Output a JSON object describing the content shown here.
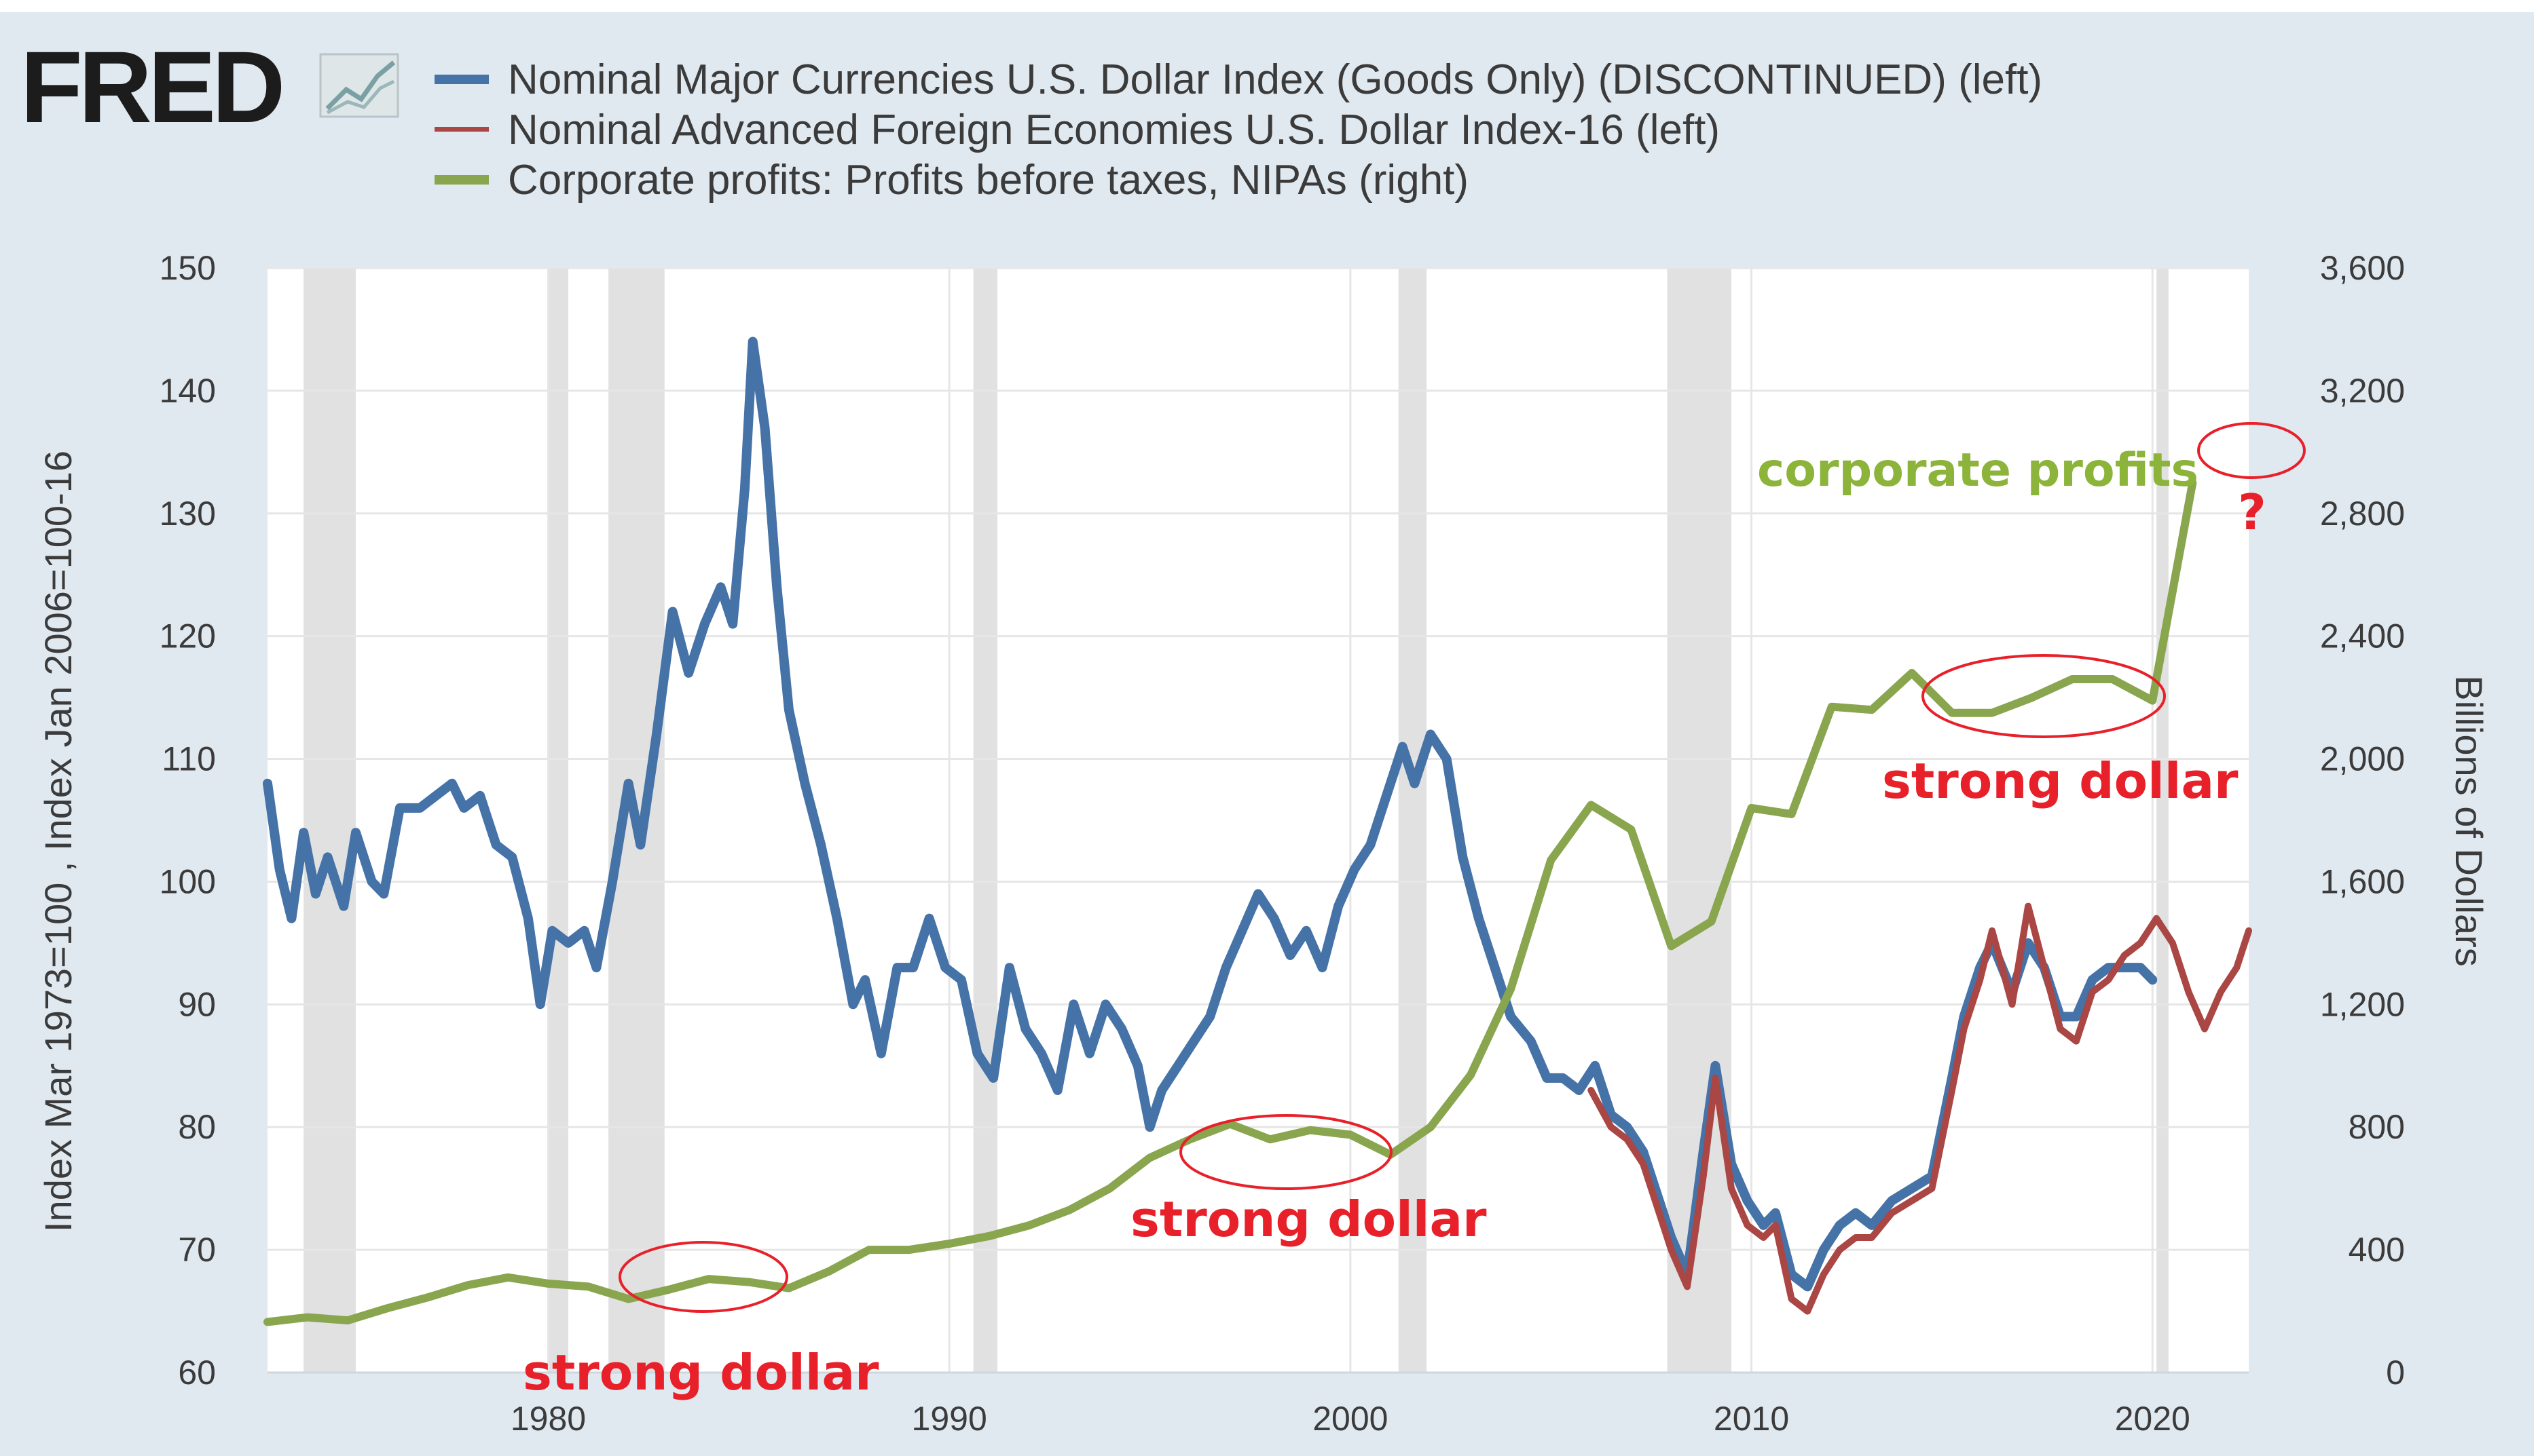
{
  "brand": {
    "logo_text": "FRED",
    "logo_icon": "line-chart-icon"
  },
  "colors": {
    "panel_bg": "#e1e9f0",
    "plot_bg": "#ffffff",
    "recession": "#e1e1e1",
    "series1": "#4572a7",
    "series2": "#aa4643",
    "series3": "#89a54e",
    "annotation": "#e8202a"
  },
  "chart_data": {
    "type": "line",
    "title": "",
    "legend_position": "top-left",
    "grid": true,
    "legend": [
      {
        "label": "Nominal Major Currencies U.S. Dollar Index (Goods Only) (DISCONTINUED) (left)",
        "color": "#4572a7"
      },
      {
        "label": "Nominal Advanced Foreign Economies U.S. Dollar Index-16 (left)",
        "color": "#aa4643"
      },
      {
        "label": "Corporate profits: Profits before taxes, NIPAs (right)",
        "color": "#89a54e"
      }
    ],
    "x_axis": {
      "range": [
        1973,
        2022.4
      ],
      "ticks": [
        "1980",
        "1990",
        "2000",
        "2010",
        "2020"
      ]
    },
    "y_left": {
      "label": "Index Mar 1973=100 , Index Jan 2006=100-16",
      "range": [
        60,
        150
      ],
      "ticks": [
        "60",
        "70",
        "80",
        "90",
        "100",
        "110",
        "120",
        "130",
        "140",
        "150"
      ]
    },
    "y_right": {
      "label": "Billions of Dollars",
      "range": [
        0,
        3600
      ],
      "ticks": [
        "0",
        "400",
        "800",
        "1,200",
        "1,600",
        "2,000",
        "2,400",
        "2,800",
        "3,200",
        "3,600"
      ]
    },
    "recessions": [
      [
        1973.9,
        1975.2
      ],
      [
        1980.0,
        1980.5
      ],
      [
        1981.5,
        1982.9
      ],
      [
        1990.6,
        1991.2
      ],
      [
        2001.2,
        2001.9
      ],
      [
        2007.9,
        2009.5
      ],
      [
        2020.1,
        2020.4
      ]
    ],
    "series": [
      {
        "name": "Nominal Major Currencies U.S. Dollar Index (Goods Only) (DISCONTINUED) (left)",
        "axis": "left",
        "points": [
          [
            1973.0,
            108
          ],
          [
            1973.3,
            101
          ],
          [
            1973.6,
            97
          ],
          [
            1973.9,
            104
          ],
          [
            1974.2,
            99
          ],
          [
            1974.5,
            102
          ],
          [
            1974.9,
            98
          ],
          [
            1975.2,
            104
          ],
          [
            1975.6,
            100
          ],
          [
            1975.9,
            99
          ],
          [
            1976.3,
            106
          ],
          [
            1976.8,
            106
          ],
          [
            1977.2,
            107
          ],
          [
            1977.6,
            108
          ],
          [
            1977.9,
            106
          ],
          [
            1978.3,
            107
          ],
          [
            1978.7,
            103
          ],
          [
            1979.1,
            102
          ],
          [
            1979.5,
            97
          ],
          [
            1979.8,
            90
          ],
          [
            1980.1,
            96
          ],
          [
            1980.5,
            95
          ],
          [
            1980.9,
            96
          ],
          [
            1981.2,
            93
          ],
          [
            1981.6,
            100
          ],
          [
            1982.0,
            108
          ],
          [
            1982.3,
            103
          ],
          [
            1982.7,
            112
          ],
          [
            1983.1,
            122
          ],
          [
            1983.5,
            117
          ],
          [
            1983.9,
            121
          ],
          [
            1984.3,
            124
          ],
          [
            1984.6,
            121
          ],
          [
            1984.9,
            132
          ],
          [
            1985.1,
            144
          ],
          [
            1985.4,
            137
          ],
          [
            1985.7,
            124
          ],
          [
            1986.0,
            114
          ],
          [
            1986.4,
            108
          ],
          [
            1986.8,
            103
          ],
          [
            1987.2,
            97
          ],
          [
            1987.6,
            90
          ],
          [
            1987.9,
            92
          ],
          [
            1988.3,
            86
          ],
          [
            1988.7,
            93
          ],
          [
            1989.1,
            93
          ],
          [
            1989.5,
            97
          ],
          [
            1989.9,
            93
          ],
          [
            1990.3,
            92
          ],
          [
            1990.7,
            86
          ],
          [
            1991.1,
            84
          ],
          [
            1991.5,
            93
          ],
          [
            1991.9,
            88
          ],
          [
            1992.3,
            86
          ],
          [
            1992.7,
            83
          ],
          [
            1993.1,
            90
          ],
          [
            1993.5,
            86
          ],
          [
            1993.9,
            90
          ],
          [
            1994.3,
            88
          ],
          [
            1994.7,
            85
          ],
          [
            1995.0,
            80
          ],
          [
            1995.3,
            83
          ],
          [
            1995.7,
            85
          ],
          [
            1996.1,
            87
          ],
          [
            1996.5,
            89
          ],
          [
            1996.9,
            93
          ],
          [
            1997.3,
            96
          ],
          [
            1997.7,
            99
          ],
          [
            1998.1,
            97
          ],
          [
            1998.5,
            94
          ],
          [
            1998.9,
            96
          ],
          [
            1999.3,
            93
          ],
          [
            1999.7,
            98
          ],
          [
            2000.1,
            101
          ],
          [
            2000.5,
            103
          ],
          [
            2000.9,
            107
          ],
          [
            2001.3,
            111
          ],
          [
            2001.6,
            108
          ],
          [
            2002.0,
            112
          ],
          [
            2002.4,
            110
          ],
          [
            2002.8,
            102
          ],
          [
            2003.2,
            97
          ],
          [
            2003.6,
            93
          ],
          [
            2004.0,
            89
          ],
          [
            2004.5,
            87
          ],
          [
            2004.9,
            84
          ],
          [
            2005.3,
            84
          ],
          [
            2005.7,
            83
          ],
          [
            2006.1,
            85
          ],
          [
            2006.5,
            81
          ],
          [
            2006.9,
            80
          ],
          [
            2007.3,
            78
          ],
          [
            2007.7,
            74
          ],
          [
            2008.0,
            71
          ],
          [
            2008.4,
            68
          ],
          [
            2008.8,
            78
          ],
          [
            2009.1,
            85
          ],
          [
            2009.5,
            77
          ],
          [
            2009.9,
            74
          ],
          [
            2010.3,
            72
          ],
          [
            2010.6,
            73
          ],
          [
            2011.0,
            68
          ],
          [
            2011.4,
            67
          ],
          [
            2011.8,
            70
          ],
          [
            2012.2,
            72
          ],
          [
            2012.6,
            73
          ],
          [
            2013.0,
            72
          ],
          [
            2013.5,
            74
          ],
          [
            2014.0,
            75
          ],
          [
            2014.5,
            76
          ],
          [
            2015.0,
            84
          ],
          [
            2015.3,
            89
          ],
          [
            2015.7,
            93
          ],
          [
            2016.0,
            95
          ],
          [
            2016.5,
            91
          ],
          [
            2016.9,
            95
          ],
          [
            2017.3,
            93
          ],
          [
            2017.7,
            89
          ],
          [
            2018.1,
            89
          ],
          [
            2018.5,
            92
          ],
          [
            2018.9,
            93
          ],
          [
            2019.3,
            93
          ],
          [
            2019.7,
            93
          ],
          [
            2020.0,
            92
          ]
        ]
      },
      {
        "name": "Nominal Advanced Foreign Economies U.S. Dollar Index-16 (left)",
        "axis": "left",
        "points": [
          [
            2006.0,
            83
          ],
          [
            2006.5,
            80
          ],
          [
            2006.9,
            79
          ],
          [
            2007.3,
            77
          ],
          [
            2007.7,
            73
          ],
          [
            2008.0,
            70
          ],
          [
            2008.4,
            67
          ],
          [
            2008.8,
            76
          ],
          [
            2009.1,
            84
          ],
          [
            2009.5,
            75
          ],
          [
            2009.9,
            72
          ],
          [
            2010.3,
            71
          ],
          [
            2010.6,
            72
          ],
          [
            2011.0,
            66
          ],
          [
            2011.4,
            65
          ],
          [
            2011.8,
            68
          ],
          [
            2012.2,
            70
          ],
          [
            2012.6,
            71
          ],
          [
            2013.0,
            71
          ],
          [
            2013.5,
            73
          ],
          [
            2014.0,
            74
          ],
          [
            2014.5,
            75
          ],
          [
            2015.0,
            83
          ],
          [
            2015.3,
            88
          ],
          [
            2015.7,
            92
          ],
          [
            2016.0,
            96
          ],
          [
            2016.5,
            90
          ],
          [
            2016.9,
            98
          ],
          [
            2017.3,
            93
          ],
          [
            2017.7,
            88
          ],
          [
            2018.1,
            87
          ],
          [
            2018.5,
            91
          ],
          [
            2018.9,
            92
          ],
          [
            2019.3,
            94
          ],
          [
            2019.7,
            95
          ],
          [
            2020.1,
            97
          ],
          [
            2020.5,
            95
          ],
          [
            2020.9,
            91
          ],
          [
            2021.3,
            88
          ],
          [
            2021.7,
            91
          ],
          [
            2022.1,
            93
          ],
          [
            2022.4,
            96
          ]
        ]
      },
      {
        "name": "Corporate profits: Profits before taxes, NIPAs (right)",
        "axis": "right",
        "points": [
          [
            1973,
            165
          ],
          [
            1974,
            180
          ],
          [
            1975,
            170
          ],
          [
            1976,
            210
          ],
          [
            1977,
            245
          ],
          [
            1978,
            285
          ],
          [
            1979,
            310
          ],
          [
            1980,
            290
          ],
          [
            1981,
            280
          ],
          [
            1982,
            240
          ],
          [
            1983,
            270
          ],
          [
            1984,
            305
          ],
          [
            1985,
            295
          ],
          [
            1986,
            275
          ],
          [
            1987,
            330
          ],
          [
            1988,
            400
          ],
          [
            1989,
            400
          ],
          [
            1990,
            420
          ],
          [
            1991,
            445
          ],
          [
            1992,
            480
          ],
          [
            1993,
            530
          ],
          [
            1994,
            600
          ],
          [
            1995,
            700
          ],
          [
            1996,
            760
          ],
          [
            1997,
            810
          ],
          [
            1998,
            760
          ],
          [
            1999,
            790
          ],
          [
            2000,
            775
          ],
          [
            2001,
            710
          ],
          [
            2002,
            800
          ],
          [
            2003,
            970
          ],
          [
            2004,
            1250
          ],
          [
            2005,
            1670
          ],
          [
            2006,
            1850
          ],
          [
            2007,
            1770
          ],
          [
            2008,
            1390
          ],
          [
            2009,
            1470
          ],
          [
            2010,
            1840
          ],
          [
            2011,
            1820
          ],
          [
            2012,
            2170
          ],
          [
            2013,
            2160
          ],
          [
            2014,
            2280
          ],
          [
            2015,
            2150
          ],
          [
            2016,
            2150
          ],
          [
            2017,
            2200
          ],
          [
            2018,
            2260
          ],
          [
            2019,
            2260
          ],
          [
            2020,
            2190
          ],
          [
            2021,
            2900
          ]
        ]
      }
    ],
    "annotations": {
      "strong_dollar_1": "strong dollar",
      "strong_dollar_2": "strong dollar",
      "strong_dollar_3": "strong dollar",
      "corporate_profits": "corporate profits",
      "question_mark": "?"
    }
  }
}
